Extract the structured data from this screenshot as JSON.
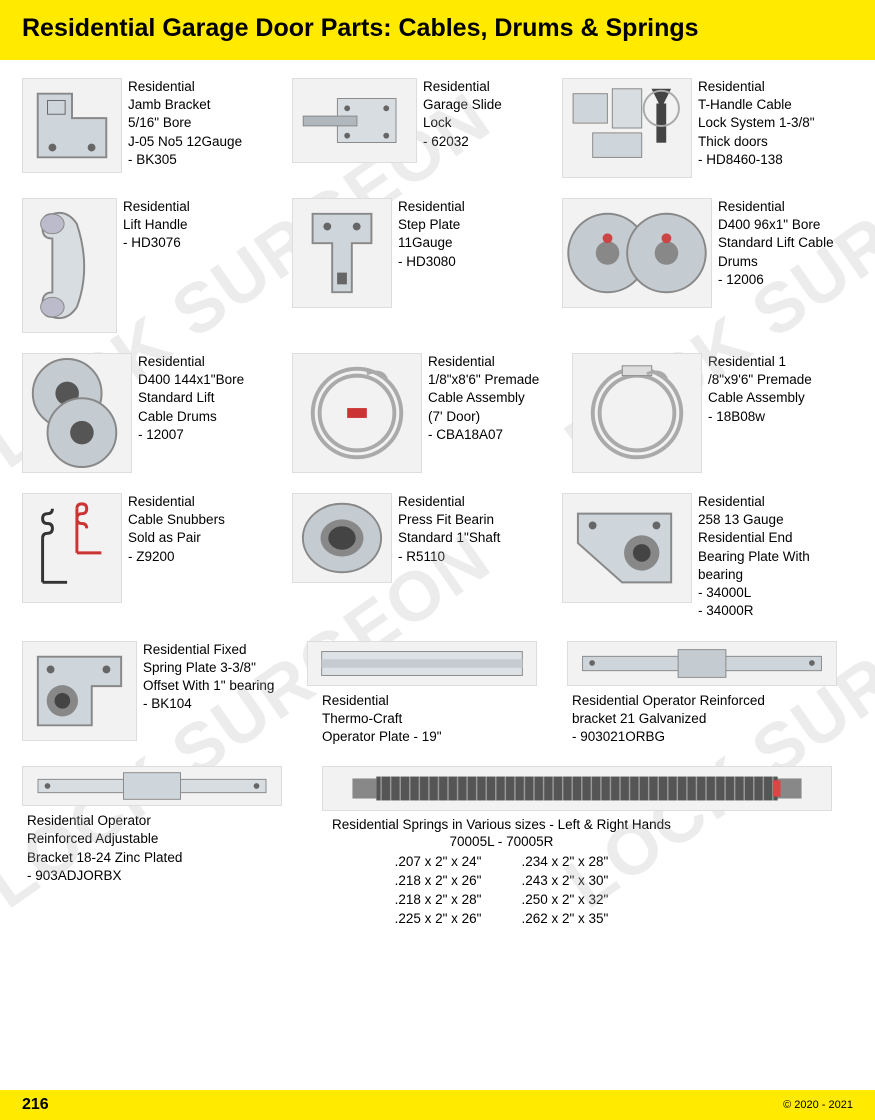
{
  "header_title": "Residential Garage Door Parts: Cables, Drums & Springs",
  "watermark_text": "LOCK SURGEON",
  "page_number": "216",
  "copyright": "© 2020 - 2021",
  "items": {
    "r1c1": "Residential\nJamb Bracket\n5/16\" Bore\nJ-05 No5 12Gauge\n- BK305",
    "r1c2": "Residential\nGarage Slide\nLock\n- 62032",
    "r1c3": "Residential\nT-Handle Cable\nLock System 1-3/8\"\nThick doors\n- HD8460-138",
    "r2c1": "Residential\nLift Handle\n- HD3076",
    "r2c2": "Residential\nStep Plate\n11Gauge\n- HD3080",
    "r2c3": "Residential\nD400 96x1\" Bore\nStandard Lift Cable\nDrums\n- 12006",
    "r3c1": "Residential\nD400 144x1\"Bore\nStandard Lift\nCable Drums\n- 12007",
    "r3c2": "Residential\n1/8\"x8'6\" Premade\nCable Assembly\n(7' Door)\n- CBA18A07",
    "r3c3": "Residential 1\n/8\"x9'6\" Premade\nCable Assembly\n- 18B08w",
    "r4c1": "Residential\nCable Snubbers\nSold as Pair\n- Z9200",
    "r4c2": "Residential\nPress Fit Bearin\nStandard 1\"Shaft\n- R5110",
    "r4c3": "Residential\n258 13 Gauge\nResidential End\nBearing Plate With\nbearing\n- 34000L\n- 34000R",
    "r5c1": "Residential Fixed\nSpring Plate 3-3/8\"\nOffset With 1\" bearing\n- BK104",
    "r5c2": "Residential\nThermo-Craft\nOperator Plate - 19\"",
    "r5c3": "Residential Operator Reinforced\nbracket 21 Galvanized\n- 903021ORBG",
    "r6c1": "Residential Operator\nReinforced Adjustable\nBracket 18-24 Zinc Plated\n- 903ADJORBX"
  },
  "springs": {
    "title": "Residential Springs in Various sizes - Left & Right Hands",
    "subtitle": "70005L  -  70005R",
    "col1": ".207 x 2\" x 24\"\n.218 x 2\" x 26\"\n.218 x 2\" x 28\"\n.225 x 2\" x 26\"",
    "col2": ".234 x 2\" x 28\"\n.243 x 2\" x 30\"\n.250 x 2\" x 32\"\n.262 x 2\" x 35\""
  },
  "colors": {
    "header_bg": "#ffea00",
    "text": "#000000",
    "watermark": "rgba(180,180,180,0.25)"
  }
}
